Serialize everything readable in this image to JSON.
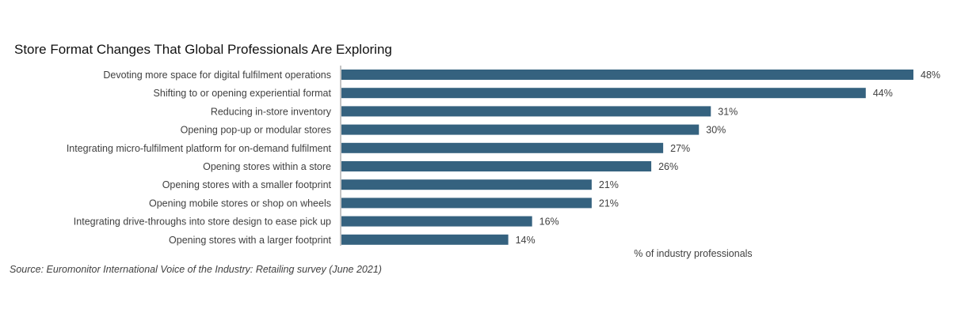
{
  "chart_data": {
    "type": "bar",
    "orientation": "horizontal",
    "title": "Store Format Changes That Global Professionals Are Exploring",
    "xlabel": "% of industry professionals",
    "ylabel": "",
    "source": "Source: Euromonitor International Voice of the Industry: Retailing survey (June 2021)",
    "categories": [
      "Devoting more space for digital fulfilment operations",
      "Shifting to or opening experiential format",
      "Reducing in-store inventory",
      "Opening pop-up or modular stores",
      "Integrating micro-fulfilment platform for on-demand fulfilment",
      "Opening stores within a store",
      "Opening stores with a smaller footprint",
      "Opening mobile stores or shop on wheels",
      "Integrating drive-throughs into store design to ease pick up",
      "Opening stores with a larger footprint"
    ],
    "values": [
      48,
      44,
      31,
      30,
      27,
      26,
      21,
      21,
      16,
      14
    ],
    "value_labels": [
      "48%",
      "44%",
      "31%",
      "30%",
      "27%",
      "26%",
      "21%",
      "21%",
      "16%",
      "14%"
    ],
    "xlim": [
      0,
      48
    ],
    "grid": false,
    "legend": "none",
    "bar_color": "#35627f"
  }
}
